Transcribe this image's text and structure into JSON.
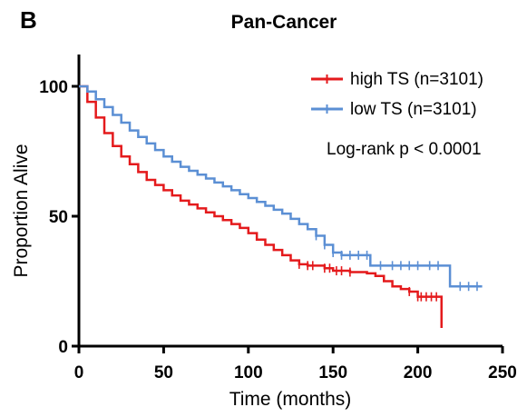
{
  "panel_label": "B",
  "chart_data": {
    "type": "line",
    "subtype": "kaplan-meier",
    "title": "Pan-Cancer",
    "xlabel": "Time (months)",
    "ylabel": "Proportion Alive",
    "xlim": [
      0,
      250
    ],
    "ylim": [
      0,
      100
    ],
    "xticks": [
      0,
      50,
      100,
      150,
      200,
      250
    ],
    "yticks": [
      0,
      50,
      100
    ],
    "grid": false,
    "legend_position": "top-right",
    "annotation": "Log-rank p < 0.0001",
    "series": [
      {
        "name": "high TS (n=3101)",
        "color": "#e41a1c",
        "x": [
          0,
          5,
          10,
          15,
          20,
          25,
          30,
          35,
          40,
          45,
          50,
          55,
          60,
          65,
          70,
          75,
          80,
          85,
          90,
          95,
          100,
          105,
          110,
          115,
          120,
          125,
          130,
          135,
          140,
          145,
          150,
          155,
          160,
          165,
          170,
          175,
          180,
          185,
          190,
          195,
          200,
          205,
          210,
          214,
          214
        ],
        "y": [
          100,
          94,
          88,
          82,
          77,
          73,
          70,
          67,
          64,
          62,
          60,
          58,
          56,
          54.5,
          53,
          51.5,
          50,
          48.5,
          47,
          45.5,
          43.5,
          41,
          39,
          37,
          35,
          33,
          31.5,
          31,
          31,
          30,
          29,
          29,
          28.5,
          28.5,
          28,
          27,
          25,
          23,
          22,
          21,
          19,
          19,
          19,
          19,
          7
        ],
        "censor_x": [
          130,
          135,
          138,
          145,
          148,
          152,
          155,
          160,
          195,
          200,
          202,
          205,
          208,
          211
        ]
      },
      {
        "name": "low TS (n=3101)",
        "color": "#5b8fd4",
        "x": [
          0,
          5,
          10,
          15,
          20,
          25,
          30,
          35,
          40,
          45,
          50,
          55,
          60,
          65,
          70,
          75,
          80,
          85,
          90,
          95,
          100,
          105,
          110,
          115,
          120,
          125,
          130,
          135,
          140,
          145,
          150,
          155,
          160,
          165,
          170,
          172,
          180,
          190,
          200,
          210,
          219,
          219,
          225,
          230,
          238
        ],
        "y": [
          100,
          98,
          95,
          92,
          89,
          86,
          83,
          80.5,
          78,
          75.5,
          73,
          71,
          69,
          67.5,
          66,
          64.5,
          63,
          61.5,
          60,
          58.5,
          57,
          55.5,
          54,
          52.5,
          51,
          49,
          47,
          45,
          42.5,
          39,
          36,
          35,
          35,
          35,
          35,
          31,
          31,
          31,
          31,
          31,
          31,
          23,
          23,
          23,
          23
        ],
        "censor_x": [
          140,
          145,
          150,
          155,
          160,
          165,
          170,
          178,
          185,
          190,
          195,
          200,
          207,
          212,
          225,
          230,
          235
        ]
      }
    ]
  }
}
